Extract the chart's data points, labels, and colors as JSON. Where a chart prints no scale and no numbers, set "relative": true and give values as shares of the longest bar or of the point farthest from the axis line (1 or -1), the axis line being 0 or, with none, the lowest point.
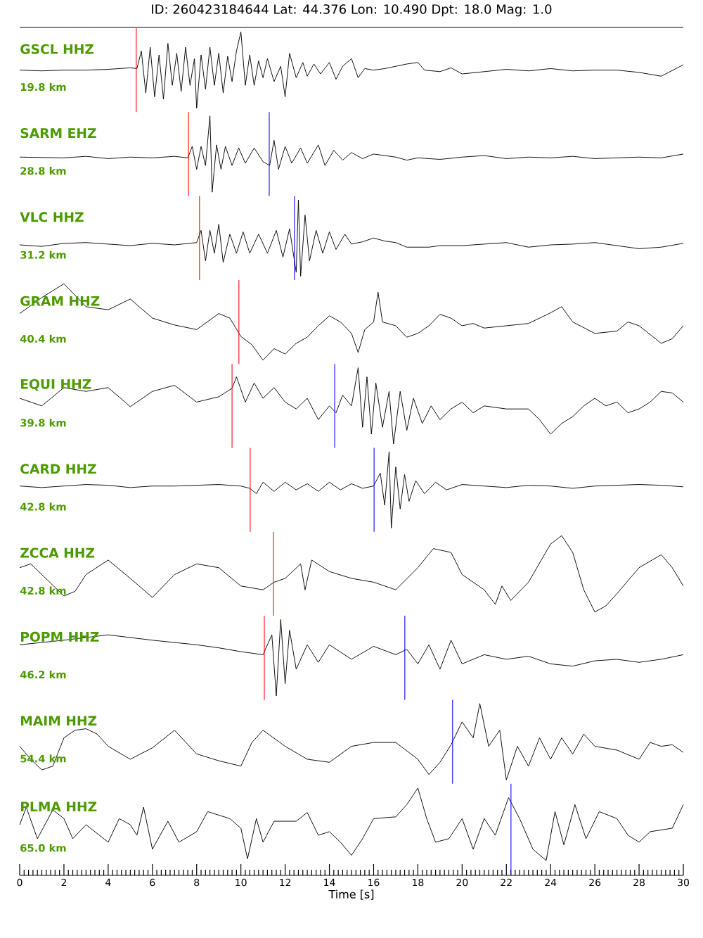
{
  "chart_data": [
    {
      "type": "line",
      "title": "ID: 260423184644 Lat:  44.376 Lon:  10.490 Dpt:    18.0 Mag:   1.0",
      "annotations": [
        "GSCL HHZ",
        "19.8 km"
      ],
      "relative": true,
      "xlim": [
        0,
        30
      ],
      "tick_labels": false,
      "x": [
        0,
        1,
        2,
        3,
        4,
        5,
        5.3,
        5.5,
        5.7,
        5.9,
        6.1,
        6.3,
        6.5,
        6.7,
        6.9,
        7.1,
        7.3,
        7.5,
        7.7,
        7.9,
        8,
        8.2,
        8.4,
        8.6,
        8.8,
        9,
        9.2,
        9.4,
        9.6,
        9.8,
        10,
        10.2,
        10.4,
        10.6,
        10.8,
        11,
        11.2,
        11.5,
        11.8,
        12,
        12.2,
        12.5,
        12.8,
        13,
        13.3,
        13.6,
        14,
        14.3,
        14.6,
        15,
        15.3,
        15.6,
        16,
        16.5,
        17,
        17.5,
        18,
        18.3,
        19,
        19.5,
        20,
        21,
        22,
        23,
        24,
        25,
        26,
        27,
        28,
        29,
        30
      ],
      "series": [
        {
          "color": "#000000",
          "values": [
            0.5,
            0.49,
            0.5,
            0.5,
            0.51,
            0.53,
            0.52,
            0.75,
            0.2,
            0.8,
            0.15,
            0.7,
            0.12,
            0.85,
            0.3,
            0.72,
            0.22,
            0.8,
            0.3,
            0.65,
            0,
            0.7,
            0.25,
            0.8,
            0.3,
            0.72,
            0.2,
            0.68,
            0.35,
            0.75,
            1,
            0.3,
            0.7,
            0.3,
            0.62,
            0.4,
            0.65,
            0.35,
            0.55,
            0.15,
            0.72,
            0.4,
            0.6,
            0.42,
            0.58,
            0.45,
            0.6,
            0.38,
            0.55,
            0.65,
            0.4,
            0.52,
            0.5,
            0.52,
            0.55,
            0.58,
            0.6,
            0.5,
            0.48,
            0.53,
            0.45,
            0.48,
            0.51,
            0.49,
            0.52,
            0.49,
            0.5,
            0.5,
            0.47,
            0.42,
            0.57
          ]
        }
      ],
      "ref_lines": [
        {
          "axis": "x",
          "value": 5.27,
          "color": "#ff0000"
        }
      ]
    },
    {
      "type": "line",
      "annotations": [
        "SARM EHZ",
        "28.8 km"
      ],
      "relative": true,
      "xlim": [
        0,
        30
      ],
      "tick_labels": false,
      "x": [
        0,
        2,
        3,
        4,
        5,
        6,
        7,
        7.6,
        7.8,
        8,
        8.2,
        8.4,
        8.6,
        8.7,
        8.9,
        9.1,
        9.3,
        9.6,
        9.9,
        10.2,
        10.6,
        11,
        11.3,
        11.5,
        11.7,
        12,
        12.3,
        12.7,
        13,
        13.5,
        13.8,
        14.2,
        14.6,
        15,
        15.5,
        16,
        17,
        17.5,
        18,
        19,
        20,
        21,
        22,
        23,
        24,
        25,
        26,
        27,
        28,
        29,
        30
      ],
      "series": [
        {
          "color": "#000000",
          "values": [
            0.46,
            0.45,
            0.47,
            0.44,
            0.46,
            0.45,
            0.47,
            0.45,
            0.6,
            0.3,
            0.6,
            0.35,
            1,
            0,
            0.62,
            0.3,
            0.6,
            0.35,
            0.58,
            0.38,
            0.58,
            0.4,
            0.35,
            0.68,
            0.3,
            0.6,
            0.38,
            0.58,
            0.38,
            0.62,
            0.35,
            0.55,
            0.42,
            0.52,
            0.44,
            0.5,
            0.46,
            0.42,
            0.45,
            0.43,
            0.46,
            0.48,
            0.44,
            0.46,
            0.45,
            0.47,
            0.44,
            0.45,
            0.46,
            0.45,
            0.5
          ]
        }
      ],
      "ref_lines": [
        {
          "axis": "x",
          "value": 7.63,
          "color": "#ff0000"
        },
        {
          "axis": "x",
          "value": 11.28,
          "color": "#0000ff"
        }
      ]
    },
    {
      "type": "line",
      "annotations": [
        "VLC HHZ",
        "31.2 km"
      ],
      "relative": true,
      "xlim": [
        0,
        30
      ],
      "tick_labels": false,
      "x": [
        0,
        1,
        2,
        3,
        4,
        5,
        6,
        7,
        8,
        8.2,
        8.4,
        8.6,
        8.8,
        9,
        9.2,
        9.5,
        9.8,
        10.1,
        10.4,
        10.8,
        11.2,
        11.6,
        11.9,
        12.2,
        12.5,
        12.6,
        12.7,
        12.9,
        13.1,
        13.4,
        13.7,
        14,
        14.3,
        14.7,
        15,
        15.5,
        16,
        16.5,
        17,
        17.5,
        18.5,
        19,
        20,
        21,
        22,
        23,
        24,
        25,
        26,
        27,
        28,
        29,
        30
      ],
      "series": [
        {
          "color": "#000000",
          "values": [
            0.41,
            0.39,
            0.43,
            0.44,
            0.42,
            0.4,
            0.43,
            0.41,
            0.44,
            0.6,
            0.2,
            0.6,
            0.3,
            0.68,
            0.18,
            0.55,
            0.3,
            0.58,
            0.3,
            0.55,
            0.3,
            0.6,
            0.25,
            0.62,
            0.05,
            1,
            0,
            0.8,
            0.2,
            0.6,
            0.3,
            0.58,
            0.35,
            0.55,
            0.42,
            0.45,
            0.5,
            0.46,
            0.44,
            0.38,
            0.38,
            0.4,
            0.4,
            0.42,
            0.44,
            0.38,
            0.41,
            0.42,
            0.44,
            0.4,
            0.36,
            0.38,
            0.43
          ]
        }
      ],
      "ref_lines": [
        {
          "axis": "x",
          "value": 8.13,
          "color": "#ff0000"
        },
        {
          "axis": "x",
          "value": 12.42,
          "color": "#0000ff"
        }
      ]
    },
    {
      "type": "line",
      "annotations": [
        "GRAM HHZ",
        "40.4 km"
      ],
      "relative": true,
      "xlim": [
        0,
        30
      ],
      "tick_labels": false,
      "x": [
        0,
        1,
        2,
        3,
        4,
        5,
        6,
        7,
        8,
        9,
        9.5,
        10,
        10.5,
        11,
        11.5,
        12,
        12.5,
        13,
        13.5,
        14,
        14.5,
        15,
        15.3,
        15.6,
        16,
        16.2,
        16.4,
        17,
        17.5,
        18,
        18.5,
        19,
        19.5,
        20,
        20.5,
        21,
        22,
        23,
        24,
        24.5,
        25,
        26,
        27,
        27.5,
        28,
        29,
        29.5,
        30
      ],
      "series": [
        {
          "color": "#000000",
          "values": [
            0.61,
            0.82,
            1,
            0.7,
            0.66,
            0.8,
            0.55,
            0.46,
            0.4,
            0.61,
            0.55,
            0.31,
            0.2,
            0,
            0.15,
            0.08,
            0.22,
            0.3,
            0.45,
            0.58,
            0.5,
            0.35,
            0.1,
            0.4,
            0.5,
            0.89,
            0.5,
            0.45,
            0.3,
            0.35,
            0.45,
            0.6,
            0.55,
            0.45,
            0.48,
            0.42,
            0.45,
            0.48,
            0.62,
            0.7,
            0.5,
            0.35,
            0.38,
            0.5,
            0.45,
            0.22,
            0.28,
            0.45
          ]
        }
      ],
      "ref_lines": [
        {
          "axis": "x",
          "value": 9.91,
          "color": "#ff0000"
        }
      ]
    },
    {
      "type": "line",
      "annotations": [
        "EQUI HHZ",
        "39.8 km"
      ],
      "relative": true,
      "xlim": [
        0,
        30
      ],
      "tick_labels": false,
      "x": [
        0,
        1,
        2,
        3,
        4,
        5,
        6,
        7,
        8,
        9,
        9.6,
        9.8,
        10.2,
        10.6,
        11,
        11.5,
        12,
        12.5,
        13,
        13.5,
        14,
        14.3,
        14.6,
        15,
        15.3,
        15.5,
        15.7,
        15.9,
        16.1,
        16.4,
        16.7,
        16.9,
        17.2,
        17.5,
        17.8,
        18.2,
        18.6,
        19,
        19.5,
        20,
        20.5,
        21,
        22,
        23,
        23.5,
        24,
        24.5,
        25,
        25.5,
        26,
        26.5,
        27,
        27.5,
        28,
        28.5,
        29,
        29.5,
        30
      ],
      "series": [
        {
          "color": "#000000",
          "values": [
            0.6,
            0.5,
            0.74,
            0.69,
            0.74,
            0.49,
            0.69,
            0.77,
            0.55,
            0.62,
            0.73,
            0.88,
            0.55,
            0.8,
            0.6,
            0.74,
            0.55,
            0.46,
            0.6,
            0.32,
            0.5,
            0.41,
            0.64,
            0.5,
            1,
            0.22,
            0.88,
            0.13,
            0.8,
            0.22,
            0.69,
            0,
            0.69,
            0.18,
            0.6,
            0.27,
            0.5,
            0.32,
            0.46,
            0.55,
            0.41,
            0.5,
            0.46,
            0.46,
            0.32,
            0.13,
            0.27,
            0.36,
            0.5,
            0.6,
            0.5,
            0.55,
            0.41,
            0.46,
            0.55,
            0.69,
            0.67,
            0.55
          ]
        }
      ],
      "ref_lines": [
        {
          "axis": "x",
          "value": 9.6,
          "color": "#ff0000"
        },
        {
          "axis": "x",
          "value": 14.24,
          "color": "#0000ff"
        }
      ]
    },
    {
      "type": "line",
      "annotations": [
        "CARD HHZ",
        "42.8 km"
      ],
      "relative": true,
      "xlim": [
        0,
        30
      ],
      "tick_labels": false,
      "x": [
        0,
        1,
        2,
        3,
        4,
        5,
        6,
        7,
        8,
        9,
        10,
        10.4,
        10.7,
        11,
        11.5,
        12,
        12.5,
        13,
        13.5,
        14,
        14.5,
        15,
        15.5,
        16,
        16.3,
        16.5,
        16.7,
        16.8,
        17,
        17.2,
        17.4,
        17.6,
        17.9,
        18.3,
        18.8,
        19.3,
        20,
        21,
        22,
        23,
        24,
        25,
        26,
        27,
        28,
        29,
        30
      ],
      "series": [
        {
          "color": "#000000",
          "values": [
            0.55,
            0.53,
            0.55,
            0.57,
            0.56,
            0.53,
            0.55,
            0.55,
            0.56,
            0.57,
            0.55,
            0.52,
            0.45,
            0.6,
            0.48,
            0.6,
            0.5,
            0.58,
            0.48,
            0.6,
            0.5,
            0.58,
            0.52,
            0.55,
            0.72,
            0.3,
            1,
            0,
            0.8,
            0.25,
            0.7,
            0.35,
            0.62,
            0.45,
            0.6,
            0.5,
            0.57,
            0.55,
            0.53,
            0.56,
            0.55,
            0.52,
            0.55,
            0.56,
            0.57,
            0.56,
            0.54
          ]
        }
      ],
      "ref_lines": [
        {
          "axis": "x",
          "value": 10.42,
          "color": "#ff0000"
        },
        {
          "axis": "x",
          "value": 16.02,
          "color": "#0000ff"
        }
      ]
    },
    {
      "type": "line",
      "annotations": [
        "ZCCA HHZ",
        "42.8 km"
      ],
      "relative": true,
      "xlim": [
        0,
        30
      ],
      "tick_labels": false,
      "x": [
        0,
        0.5,
        1,
        2,
        2.5,
        3,
        4,
        5,
        6,
        7,
        8,
        9,
        10,
        11,
        11.5,
        12,
        12.7,
        12.9,
        13.2,
        14,
        15,
        16,
        17,
        18,
        18.7,
        19.5,
        20,
        21,
        21.5,
        21.8,
        22.2,
        23,
        24,
        24.5,
        25,
        25.5,
        26,
        26.5,
        27,
        28,
        29,
        29.5,
        30
      ],
      "series": [
        {
          "color": "#000000",
          "values": [
            0.58,
            0.63,
            0.49,
            0.21,
            0.27,
            0.49,
            0.68,
            0.44,
            0.19,
            0.49,
            0.63,
            0.58,
            0.34,
            0.29,
            0.39,
            0.44,
            0.63,
            0.29,
            0.68,
            0.53,
            0.44,
            0.39,
            0.29,
            0.58,
            0.83,
            0.78,
            0.49,
            0.29,
            0.1,
            0.34,
            0.15,
            0.39,
            0.89,
            1,
            0.78,
            0.29,
            0,
            0.08,
            0.24,
            0.58,
            0.75,
            0.58,
            0.34
          ]
        }
      ],
      "ref_lines": [
        {
          "axis": "x",
          "value": 11.47,
          "color": "#ff0000"
        }
      ]
    },
    {
      "type": "line",
      "annotations": [
        "POPM HHZ",
        "46.2 km"
      ],
      "relative": true,
      "xlim": [
        0,
        30
      ],
      "tick_labels": false,
      "x": [
        0,
        2,
        4,
        6,
        8,
        9,
        10,
        11,
        11.4,
        11.6,
        11.8,
        12,
        12.2,
        12.5,
        13,
        13.5,
        14,
        15,
        16,
        17,
        17.5,
        18,
        18.5,
        19,
        19.5,
        20,
        21,
        22,
        23,
        24,
        25,
        26,
        27,
        28,
        29,
        30
      ],
      "series": [
        {
          "color": "#000000",
          "values": [
            0.67,
            0.73,
            0.8,
            0.73,
            0.67,
            0.63,
            0.58,
            0.54,
            0.8,
            0,
            1,
            0.16,
            0.86,
            0.35,
            0.67,
            0.44,
            0.67,
            0.48,
            0.65,
            0.54,
            0.61,
            0.42,
            0.67,
            0.35,
            0.73,
            0.42,
            0.54,
            0.48,
            0.52,
            0.42,
            0.39,
            0.46,
            0.48,
            0.44,
            0.48,
            0.54
          ]
        }
      ],
      "ref_lines": [
        {
          "axis": "x",
          "value": 11.06,
          "color": "#ff0000"
        },
        {
          "axis": "x",
          "value": 17.41,
          "color": "#0000ff"
        }
      ]
    },
    {
      "type": "line",
      "annotations": [
        "MAIM HHZ",
        "54.4 km"
      ],
      "relative": true,
      "xlim": [
        0,
        30
      ],
      "tick_labels": false,
      "x": [
        0,
        0.5,
        1,
        1.5,
        2,
        2.5,
        3,
        3.5,
        4,
        5,
        6,
        7,
        8,
        9,
        10,
        10.5,
        11,
        12,
        13,
        14,
        15,
        16,
        17,
        18,
        18.5,
        19,
        19.5,
        20,
        20.5,
        20.8,
        21.2,
        21.7,
        22,
        22.5,
        23,
        23.5,
        24,
        24.5,
        25,
        25.5,
        26,
        27,
        28,
        28.5,
        29,
        29.5,
        30
      ],
      "series": [
        {
          "color": "#000000",
          "values": [
            0.44,
            0.27,
            0.13,
            0.18,
            0.55,
            0.65,
            0.67,
            0.6,
            0.44,
            0.27,
            0.42,
            0.65,
            0.34,
            0.25,
            0.18,
            0.49,
            0.65,
            0.44,
            0.27,
            0.23,
            0.44,
            0.49,
            0.49,
            0.27,
            0.07,
            0.23,
            0.46,
            0.76,
            0.55,
            1,
            0.44,
            0.65,
            0,
            0.44,
            0.18,
            0.55,
            0.27,
            0.55,
            0.34,
            0.6,
            0.44,
            0.39,
            0.27,
            0.49,
            0.44,
            0.46,
            0.36
          ]
        }
      ],
      "ref_lines": [
        {
          "axis": "x",
          "value": 19.57,
          "color": "#0000ff"
        }
      ]
    },
    {
      "type": "line",
      "annotations": [
        "PLMA HHZ",
        "65.0 km"
      ],
      "relative": true,
      "xlim": [
        0,
        30
      ],
      "tick_labels": "x",
      "xlabel": "Time [s]",
      "xticks": [
        0,
        2,
        4,
        6,
        8,
        10,
        12,
        14,
        16,
        18,
        20,
        22,
        24,
        26,
        28,
        30,
        {
          "value": 0.2,
          "label": null
        },
        {
          "value": 0.4,
          "label": null
        },
        {
          "value": 0.6,
          "label": null
        },
        {
          "value": 0.8,
          "label": null
        },
        {
          "value": 1,
          "label": null
        },
        {
          "value": 1.2,
          "label": null
        },
        {
          "value": 1.4,
          "label": null
        },
        {
          "value": 1.6,
          "label": null
        },
        {
          "value": 1.8,
          "label": null
        },
        {
          "value": 2.2,
          "label": null
        },
        {
          "value": 2.4,
          "label": null
        },
        {
          "value": 2.6,
          "label": null
        },
        {
          "value": 2.8,
          "label": null
        },
        {
          "value": 3,
          "label": null
        },
        {
          "value": 3.2,
          "label": null
        },
        {
          "value": 3.4,
          "label": null
        },
        {
          "value": 3.6,
          "label": null
        },
        {
          "value": 3.8,
          "label": null
        },
        {
          "value": 4.2,
          "label": null
        },
        {
          "value": 4.4,
          "label": null
        },
        {
          "value": 4.6,
          "label": null
        },
        {
          "value": 4.8,
          "label": null
        },
        {
          "value": 5,
          "label": null
        },
        {
          "value": 5.2,
          "label": null
        },
        {
          "value": 5.4,
          "label": null
        },
        {
          "value": 5.6,
          "label": null
        },
        {
          "value": 5.8,
          "label": null
        },
        {
          "value": 6.2,
          "label": null
        },
        {
          "value": 6.4,
          "label": null
        },
        {
          "value": 6.6,
          "label": null
        },
        {
          "value": 6.8,
          "label": null
        },
        {
          "value": 7,
          "label": null
        },
        {
          "value": 7.2,
          "label": null
        },
        {
          "value": 7.4,
          "label": null
        },
        {
          "value": 7.6,
          "label": null
        },
        {
          "value": 7.8,
          "label": null
        },
        {
          "value": 8.2,
          "label": null
        },
        {
          "value": 8.4,
          "label": null
        },
        {
          "value": 8.6,
          "label": null
        },
        {
          "value": 8.8,
          "label": null
        },
        {
          "value": 9,
          "label": null
        },
        {
          "value": 9.2,
          "label": null
        },
        {
          "value": 9.4,
          "label": null
        },
        {
          "value": 9.6,
          "label": null
        },
        {
          "value": 9.8,
          "label": null
        },
        {
          "value": 10.2,
          "label": null
        },
        {
          "value": 10.4,
          "label": null
        },
        {
          "value": 10.6,
          "label": null
        },
        {
          "value": 10.8,
          "label": null
        },
        {
          "value": 11,
          "label": null
        },
        {
          "value": 11.2,
          "label": null
        },
        {
          "value": 11.4,
          "label": null
        },
        {
          "value": 11.6,
          "label": null
        },
        {
          "value": 11.8,
          "label": null
        },
        {
          "value": 12.2,
          "label": null
        },
        {
          "value": 12.4,
          "label": null
        },
        {
          "value": 12.6,
          "label": null
        },
        {
          "value": 12.8,
          "label": null
        },
        {
          "value": 13,
          "label": null
        },
        {
          "value": 13.2,
          "label": null
        },
        {
          "value": 13.4,
          "label": null
        },
        {
          "value": 13.6,
          "label": null
        },
        {
          "value": 13.8,
          "label": null
        },
        {
          "value": 14.2,
          "label": null
        },
        {
          "value": 14.4,
          "label": null
        },
        {
          "value": 14.6,
          "label": null
        },
        {
          "value": 14.8,
          "label": null
        },
        {
          "value": 15,
          "label": null
        },
        {
          "value": 15.2,
          "label": null
        },
        {
          "value": 15.4,
          "label": null
        },
        {
          "value": 15.6,
          "label": null
        },
        {
          "value": 15.8,
          "label": null
        },
        {
          "value": 16.2,
          "label": null
        },
        {
          "value": 16.4,
          "label": null
        },
        {
          "value": 16.6,
          "label": null
        },
        {
          "value": 16.8,
          "label": null
        },
        {
          "value": 17,
          "label": null
        },
        {
          "value": 17.2,
          "label": null
        },
        {
          "value": 17.4,
          "label": null
        },
        {
          "value": 17.6,
          "label": null
        },
        {
          "value": 17.8,
          "label": null
        },
        {
          "value": 18.2,
          "label": null
        },
        {
          "value": 18.4,
          "label": null
        },
        {
          "value": 18.6,
          "label": null
        },
        {
          "value": 18.8,
          "label": null
        },
        {
          "value": 19,
          "label": null
        },
        {
          "value": 19.2,
          "label": null
        },
        {
          "value": 19.4,
          "label": null
        },
        {
          "value": 19.6,
          "label": null
        },
        {
          "value": 19.8,
          "label": null
        },
        {
          "value": 20.2,
          "label": null
        },
        {
          "value": 20.4,
          "label": null
        },
        {
          "value": 20.6,
          "label": null
        },
        {
          "value": 20.8,
          "label": null
        },
        {
          "value": 21,
          "label": null
        },
        {
          "value": 21.2,
          "label": null
        },
        {
          "value": 21.4,
          "label": null
        },
        {
          "value": 21.6,
          "label": null
        },
        {
          "value": 21.8,
          "label": null
        },
        {
          "value": 22.2,
          "label": null
        },
        {
          "value": 22.4,
          "label": null
        },
        {
          "value": 22.6,
          "label": null
        },
        {
          "value": 22.8,
          "label": null
        },
        {
          "value": 23,
          "label": null
        },
        {
          "value": 23.2,
          "label": null
        },
        {
          "value": 23.4,
          "label": null
        },
        {
          "value": 23.6,
          "label": null
        },
        {
          "value": 23.8,
          "label": null
        },
        {
          "value": 24.2,
          "label": null
        },
        {
          "value": 24.4,
          "label": null
        },
        {
          "value": 24.6,
          "label": null
        },
        {
          "value": 24.8,
          "label": null
        },
        {
          "value": 25,
          "label": null
        },
        {
          "value": 25.2,
          "label": null
        },
        {
          "value": 25.4,
          "label": null
        },
        {
          "value": 25.6,
          "label": null
        },
        {
          "value": 25.8,
          "label": null
        },
        {
          "value": 26.2,
          "label": null
        },
        {
          "value": 26.4,
          "label": null
        },
        {
          "value": 26.6,
          "label": null
        },
        {
          "value": 26.8,
          "label": null
        },
        {
          "value": 27,
          "label": null
        },
        {
          "value": 27.2,
          "label": null
        },
        {
          "value": 27.4,
          "label": null
        },
        {
          "value": 27.6,
          "label": null
        },
        {
          "value": 27.8,
          "label": null
        },
        {
          "value": 28.2,
          "label": null
        },
        {
          "value": 28.4,
          "label": null
        },
        {
          "value": 28.6,
          "label": null
        },
        {
          "value": 28.8,
          "label": null
        },
        {
          "value": 29,
          "label": null
        },
        {
          "value": 29.2,
          "label": null
        },
        {
          "value": 29.4,
          "label": null
        },
        {
          "value": 29.6,
          "label": null
        },
        {
          "value": 29.8,
          "label": null
        }
      ],
      "x": [
        0,
        0.3,
        0.8,
        1.5,
        2,
        2.4,
        3,
        4,
        4.5,
        5,
        5.3,
        5.6,
        6,
        6.7,
        7.2,
        8,
        8.5,
        9.5,
        10,
        10.3,
        10.7,
        11,
        11.5,
        12.5,
        13,
        13.5,
        14,
        14.5,
        15,
        15.5,
        16,
        17,
        17.5,
        18,
        18.4,
        18.8,
        19.4,
        20,
        20.5,
        21,
        21.5,
        22.1,
        22.6,
        23.2,
        23.8,
        24.2,
        24.6,
        25.1,
        25.6,
        26.2,
        27,
        27.5,
        28,
        28.5,
        29.5,
        30
      ],
      "series": [
        {
          "color": "#000000",
          "values": [
            0.58,
            0.78,
            0.42,
            0.75,
            0.65,
            0.42,
            0.58,
            0.38,
            0.65,
            0.58,
            0.46,
            0.78,
            0.3,
            0.62,
            0.38,
            0.5,
            0.73,
            0.65,
            0.54,
            0.19,
            0.65,
            0.38,
            0.62,
            0.62,
            0.72,
            0.46,
            0.5,
            0.38,
            0.23,
            0.42,
            0.65,
            0.67,
            0.81,
            1,
            0.65,
            0.38,
            0.42,
            0.65,
            0.3,
            0.65,
            0.46,
            0.89,
            0.65,
            0.3,
            0.17,
            0.73,
            0.35,
            0.81,
            0.42,
            0.73,
            0.65,
            0.46,
            0.38,
            0.5,
            0.54,
            0.81
          ]
        }
      ],
      "ref_lines": [
        {
          "axis": "x",
          "value": 22.21,
          "color": "#0000ff"
        }
      ]
    }
  ]
}
